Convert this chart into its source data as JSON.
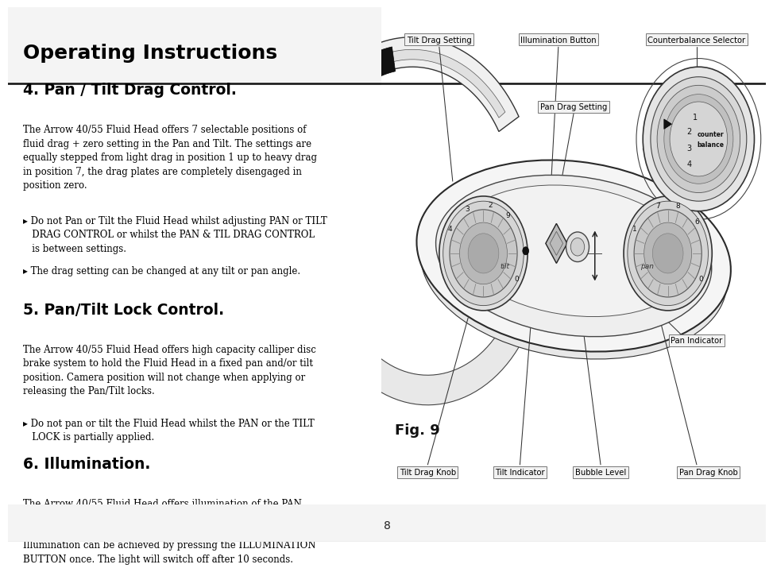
{
  "page_bg": "#ffffff",
  "header_bg_gradient": [
    0.82,
    0.96
  ],
  "header_title": "Operating Instructions",
  "header_title_size": 18,
  "section4_title": "4. Pan / Tilt Drag Control.",
  "section4_body": "The Arrow 40/55 Fluid Head offers 7 selectable positions of\nfluid drag + zero setting in the Pan and Tilt. The settings are\nequally stepped from light drag in position 1 up to heavy drag\nin position 7, the drag plates are completely disengaged in\nposition zero.",
  "section4_bullet1": "▸ Do not Pan or Tilt the Fluid Head whilst adjusting PAN or TILT\n   DRAG CONTROL or whilst the PAN & TIL DRAG CONTROL\n   is between settings.",
  "section4_bullet2": "▸ The drag setting can be changed at any tilt or pan angle.",
  "section5_title": "5. Pan/Tilt Lock Control.",
  "section5_body": "The Arrow 40/55 Fluid Head offers high capacity calliper disc\nbrake system to hold the Fluid Head in a fixed pan and/or tilt\nposition. Camera position will not change when applying or\nreleasing the Pan/Tilt locks.",
  "section5_bullet1": "▸ Do not pan or tilt the Fluid Head whilst the PAN or the TILT\n   LOCK is partially applied.",
  "section6_title": "6. Illumination.",
  "section6_body": "The Arrow 40/55 Fluid Head offers illumination of the PAN\n& TILT DRAG CONTROL settings, BUBBLE LEVEL and PAN &\nTILT INDICATOR when the low ambient light conditions exist.\nIllumination can be achieved by pressing the ILLUMINATION\nBUTTON once. The light will switch off after 10 seconds.",
  "page_number": "8",
  "fig_label": "Fig. 9",
  "lbl_tilt_drag_setting": "Tilt Drag Setting",
  "lbl_illumination_button": "Illumination Button",
  "lbl_counterbalance_selector": "Counterbalance Selector",
  "lbl_pan_drag_setting": "Pan Drag Setting",
  "lbl_pan_indicator": "Pan Indicator",
  "lbl_tilt_drag_knob": "Tilt Drag Knob",
  "lbl_tilt_indicator": "Tilt Indicator",
  "lbl_bubble_level": "Bubble Level",
  "lbl_pan_drag_knob": "Pan Drag Knob",
  "body_size": 8.5,
  "title_size": 13.5,
  "text_color": "#000000",
  "body_font": "DejaVu Serif",
  "title_font": "DejaVu Sans"
}
